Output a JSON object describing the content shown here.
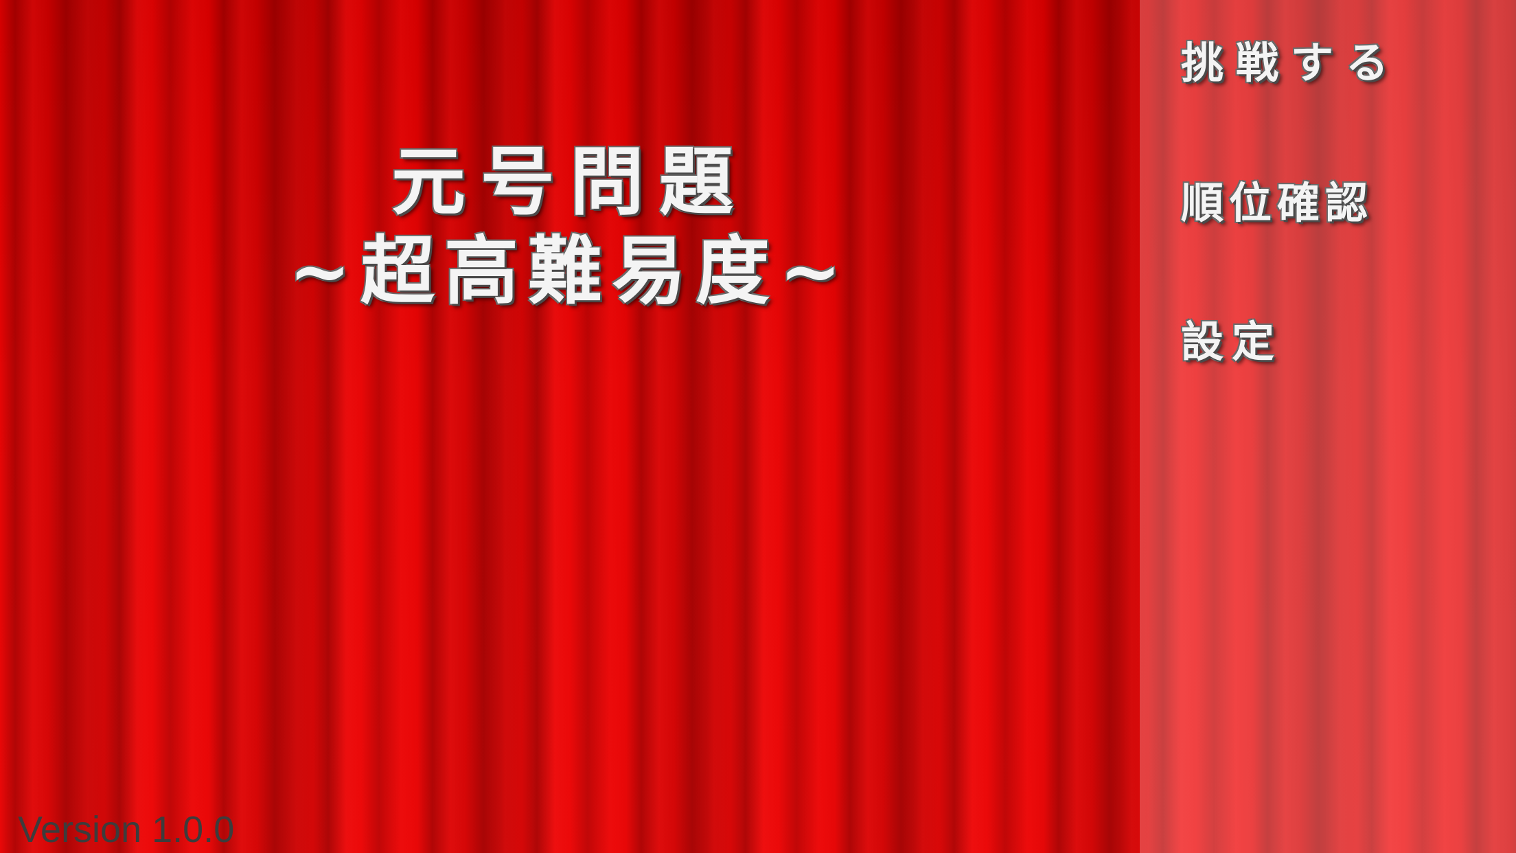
{
  "title": {
    "line1": "元号問題",
    "line2": "~超高難易度~"
  },
  "menu": {
    "challenge": "挑戦する",
    "ranking": "順位確認",
    "settings": "設定"
  },
  "footer": {
    "version": "Version 1.0.0"
  },
  "colors": {
    "curtain": "#e00000",
    "menu_panel": "#f08080",
    "text": "#f4f4f4",
    "text_outline": "#4a4a4a",
    "version_text": "#3c3c3c"
  }
}
